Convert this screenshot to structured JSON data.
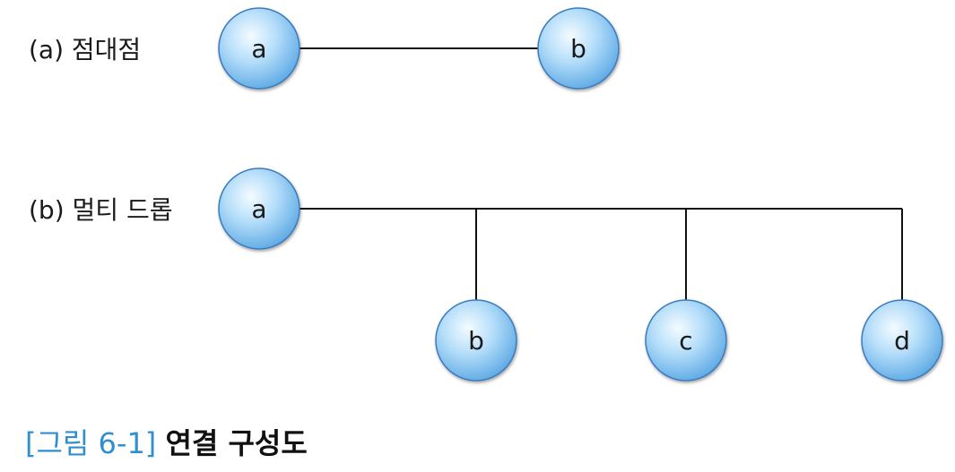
{
  "sections": {
    "point_to_point": {
      "label": "(a) 점대점",
      "nodes": [
        "a",
        "b"
      ]
    },
    "multi_drop": {
      "label": "(b) 멀티 드롭",
      "nodes": [
        "a",
        "b",
        "c",
        "d"
      ]
    }
  },
  "caption": {
    "prefix": "[그림 6-1]",
    "title": "연결 구성도"
  },
  "colors": {
    "node_fill_light": "#eaf6ff",
    "node_fill_mid": "#9fd3f7",
    "node_fill_dark": "#5aa7e3",
    "node_stroke": "#3a7bbd",
    "caption_accent": "#2f8fcf"
  }
}
